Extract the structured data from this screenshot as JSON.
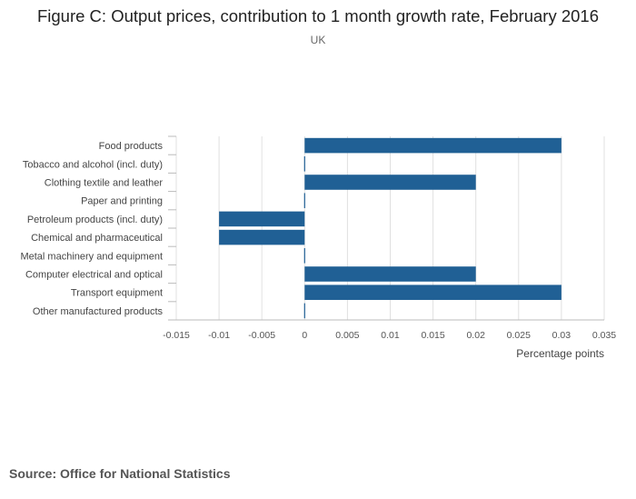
{
  "title": "Figure C: Output prices, contribution to 1 month growth rate, February 2016",
  "subtitle": "UK",
  "source": "Source: Office for National Statistics",
  "colors": {
    "bar": "#206095",
    "grid": "#e0e0e0",
    "axis": "#bbbbbb"
  },
  "chart_data": {
    "type": "bar",
    "orientation": "horizontal",
    "categories": [
      "Food products",
      "Tobacco and alcohol (incl. duty)",
      "Clothing textile and leather",
      "Paper and printing",
      "Petroleum products (incl. duty)",
      "Chemical and pharmaceutical",
      "Metal machinery and equipment",
      "Computer electrical and optical",
      "Transport equipment",
      "Other manufactured products"
    ],
    "values": [
      0.03,
      0,
      0.02,
      0,
      -0.01,
      -0.01,
      0,
      0.02,
      0.03,
      0
    ],
    "xlim": [
      -0.015,
      0.035
    ],
    "xticks": [
      -0.015,
      -0.01,
      -0.005,
      0,
      0.005,
      0.01,
      0.015,
      0.02,
      0.025,
      0.03,
      0.035
    ],
    "xtick_labels": [
      "-0.015",
      "-0.01",
      "-0.005",
      "0",
      "0.005",
      "0.01",
      "0.015",
      "0.02",
      "0.025",
      "0.03",
      "0.035"
    ],
    "xlabel": "Percentage points",
    "ylabel": "",
    "grid": true
  }
}
